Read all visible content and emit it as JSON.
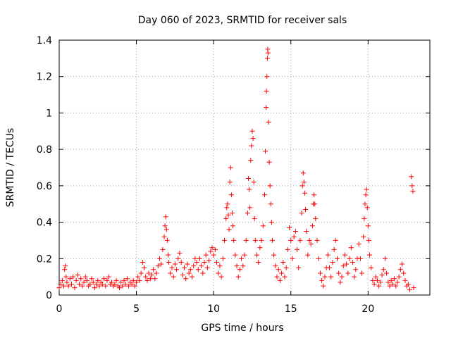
{
  "chart_data": {
    "type": "scatter",
    "title": "Day 060 of 2023, SRMTID for receiver sals",
    "xlabel": "GPS time / hours",
    "ylabel": "SRMTID / TECUs",
    "xlim": [
      0,
      24
    ],
    "ylim": [
      0,
      1.4
    ],
    "x_ticks": [
      0,
      5,
      10,
      15,
      20
    ],
    "x_tick_labels": [
      "0",
      "5",
      "10",
      "15",
      "20"
    ],
    "y_ticks": [
      0,
      0.2,
      0.4,
      0.6,
      0.8,
      1.0,
      1.2,
      1.4
    ],
    "y_tick_labels": [
      "0",
      "0.2",
      "0.4",
      "0.6",
      "0.8",
      "1",
      "1.2",
      "1.4"
    ],
    "grid": true,
    "marker": "+",
    "color": "#ff0000",
    "series": [
      {
        "name": "SRMTID",
        "points": [
          [
            0.0,
            0.04
          ],
          [
            0.1,
            0.06
          ],
          [
            0.2,
            0.08
          ],
          [
            0.3,
            0.05
          ],
          [
            0.35,
            0.14
          ],
          [
            0.4,
            0.16
          ],
          [
            0.45,
            0.1
          ],
          [
            0.5,
            0.07
          ],
          [
            0.6,
            0.05
          ],
          [
            0.7,
            0.09
          ],
          [
            0.8,
            0.06
          ],
          [
            0.9,
            0.1
          ],
          [
            1.0,
            0.04
          ],
          [
            1.1,
            0.08
          ],
          [
            1.2,
            0.11
          ],
          [
            1.3,
            0.06
          ],
          [
            1.4,
            0.09
          ],
          [
            1.5,
            0.05
          ],
          [
            1.6,
            0.07
          ],
          [
            1.7,
            0.1
          ],
          [
            1.8,
            0.08
          ],
          [
            1.9,
            0.05
          ],
          [
            2.0,
            0.06
          ],
          [
            2.1,
            0.09
          ],
          [
            2.2,
            0.07
          ],
          [
            2.3,
            0.04
          ],
          [
            2.4,
            0.06
          ],
          [
            2.5,
            0.08
          ],
          [
            2.6,
            0.05
          ],
          [
            2.7,
            0.07
          ],
          [
            2.8,
            0.06
          ],
          [
            2.9,
            0.09
          ],
          [
            3.0,
            0.05
          ],
          [
            3.1,
            0.08
          ],
          [
            3.2,
            0.1
          ],
          [
            3.3,
            0.06
          ],
          [
            3.4,
            0.07
          ],
          [
            3.5,
            0.05
          ],
          [
            3.6,
            0.06
          ],
          [
            3.7,
            0.08
          ],
          [
            3.8,
            0.05
          ],
          [
            3.9,
            0.04
          ],
          [
            4.0,
            0.07
          ],
          [
            4.1,
            0.05
          ],
          [
            4.2,
            0.08
          ],
          [
            4.3,
            0.06
          ],
          [
            4.4,
            0.09
          ],
          [
            4.5,
            0.05
          ],
          [
            4.6,
            0.07
          ],
          [
            4.7,
            0.06
          ],
          [
            4.8,
            0.08
          ],
          [
            4.9,
            0.05
          ],
          [
            5.0,
            0.07
          ],
          [
            5.1,
            0.1
          ],
          [
            5.2,
            0.08
          ],
          [
            5.3,
            0.12
          ],
          [
            5.4,
            0.18
          ],
          [
            5.5,
            0.15
          ],
          [
            5.6,
            0.1
          ],
          [
            5.7,
            0.08
          ],
          [
            5.8,
            0.12
          ],
          [
            5.9,
            0.09
          ],
          [
            6.0,
            0.11
          ],
          [
            6.1,
            0.14
          ],
          [
            6.2,
            0.09
          ],
          [
            6.3,
            0.12
          ],
          [
            6.4,
            0.16
          ],
          [
            6.5,
            0.2
          ],
          [
            6.6,
            0.17
          ],
          [
            6.7,
            0.25
          ],
          [
            6.8,
            0.32
          ],
          [
            6.85,
            0.38
          ],
          [
            6.9,
            0.43
          ],
          [
            6.95,
            0.36
          ],
          [
            7.0,
            0.3
          ],
          [
            7.05,
            0.22
          ],
          [
            7.1,
            0.18
          ],
          [
            7.2,
            0.12
          ],
          [
            7.3,
            0.15
          ],
          [
            7.4,
            0.1
          ],
          [
            7.5,
            0.17
          ],
          [
            7.6,
            0.14
          ],
          [
            7.7,
            0.2
          ],
          [
            7.8,
            0.23
          ],
          [
            7.9,
            0.18
          ],
          [
            8.0,
            0.11
          ],
          [
            8.1,
            0.15
          ],
          [
            8.2,
            0.09
          ],
          [
            8.3,
            0.17
          ],
          [
            8.4,
            0.12
          ],
          [
            8.5,
            0.14
          ],
          [
            8.6,
            0.1
          ],
          [
            8.7,
            0.16
          ],
          [
            8.8,
            0.2
          ],
          [
            8.9,
            0.18
          ],
          [
            9.0,
            0.14
          ],
          [
            9.1,
            0.2
          ],
          [
            9.2,
            0.16
          ],
          [
            9.3,
            0.12
          ],
          [
            9.4,
            0.18
          ],
          [
            9.5,
            0.22
          ],
          [
            9.6,
            0.15
          ],
          [
            9.7,
            0.19
          ],
          [
            9.8,
            0.24
          ],
          [
            9.9,
            0.26
          ],
          [
            10.0,
            0.22
          ],
          [
            10.1,
            0.25
          ],
          [
            10.2,
            0.18
          ],
          [
            10.3,
            0.12
          ],
          [
            10.4,
            0.16
          ],
          [
            10.5,
            0.1
          ],
          [
            10.6,
            0.2
          ],
          [
            10.7,
            0.3
          ],
          [
            10.8,
            0.42
          ],
          [
            10.85,
            0.48
          ],
          [
            10.9,
            0.5
          ],
          [
            10.95,
            0.44
          ],
          [
            11.0,
            0.36
          ],
          [
            11.05,
            0.62
          ],
          [
            11.1,
            0.7
          ],
          [
            11.15,
            0.55
          ],
          [
            11.2,
            0.45
          ],
          [
            11.25,
            0.38
          ],
          [
            11.3,
            0.3
          ],
          [
            11.4,
            0.22
          ],
          [
            11.5,
            0.16
          ],
          [
            11.6,
            0.1
          ],
          [
            11.7,
            0.14
          ],
          [
            11.8,
            0.2
          ],
          [
            11.9,
            0.16
          ],
          [
            12.0,
            0.22
          ],
          [
            12.1,
            0.3
          ],
          [
            12.2,
            0.45
          ],
          [
            12.25,
            0.64
          ],
          [
            12.3,
            0.58
          ],
          [
            12.35,
            0.48
          ],
          [
            12.4,
            0.74
          ],
          [
            12.45,
            0.82
          ],
          [
            12.5,
            0.9
          ],
          [
            12.55,
            0.86
          ],
          [
            12.6,
            0.62
          ],
          [
            12.65,
            0.42
          ],
          [
            12.7,
            0.3
          ],
          [
            12.8,
            0.22
          ],
          [
            12.9,
            0.18
          ],
          [
            13.0,
            0.26
          ],
          [
            13.1,
            0.3
          ],
          [
            13.2,
            0.38
          ],
          [
            13.3,
            0.55
          ],
          [
            13.35,
            0.79
          ],
          [
            13.4,
            1.03
          ],
          [
            13.42,
            1.12
          ],
          [
            13.45,
            1.2
          ],
          [
            13.48,
            1.3
          ],
          [
            13.5,
            1.35
          ],
          [
            13.52,
            1.33
          ],
          [
            13.55,
            0.95
          ],
          [
            13.6,
            0.73
          ],
          [
            13.65,
            0.6
          ],
          [
            13.7,
            0.5
          ],
          [
            13.75,
            0.4
          ],
          [
            13.8,
            0.3
          ],
          [
            13.9,
            0.22
          ],
          [
            14.0,
            0.16
          ],
          [
            14.1,
            0.1
          ],
          [
            14.2,
            0.14
          ],
          [
            14.3,
            0.08
          ],
          [
            14.4,
            0.12
          ],
          [
            14.5,
            0.18
          ],
          [
            14.6,
            0.1
          ],
          [
            14.7,
            0.15
          ],
          [
            14.8,
            0.25
          ],
          [
            14.9,
            0.37
          ],
          [
            15.0,
            0.3
          ],
          [
            15.1,
            0.2
          ],
          [
            15.2,
            0.32
          ],
          [
            15.3,
            0.35
          ],
          [
            15.4,
            0.25
          ],
          [
            15.5,
            0.15
          ],
          [
            15.6,
            0.3
          ],
          [
            15.7,
            0.45
          ],
          [
            15.75,
            0.6
          ],
          [
            15.8,
            0.67
          ],
          [
            15.85,
            0.62
          ],
          [
            15.9,
            0.56
          ],
          [
            15.95,
            0.47
          ],
          [
            16.0,
            0.35
          ],
          [
            16.1,
            0.22
          ],
          [
            16.2,
            0.3
          ],
          [
            16.3,
            0.28
          ],
          [
            16.4,
            0.38
          ],
          [
            16.45,
            0.5
          ],
          [
            16.5,
            0.55
          ],
          [
            16.55,
            0.5
          ],
          [
            16.6,
            0.42
          ],
          [
            16.7,
            0.3
          ],
          [
            16.8,
            0.2
          ],
          [
            16.9,
            0.12
          ],
          [
            17.0,
            0.08
          ],
          [
            17.1,
            0.05
          ],
          [
            17.2,
            0.1
          ],
          [
            17.3,
            0.15
          ],
          [
            17.4,
            0.22
          ],
          [
            17.5,
            0.15
          ],
          [
            17.6,
            0.1
          ],
          [
            17.7,
            0.18
          ],
          [
            17.8,
            0.25
          ],
          [
            17.9,
            0.3
          ],
          [
            18.0,
            0.2
          ],
          [
            18.1,
            0.12
          ],
          [
            18.2,
            0.07
          ],
          [
            18.3,
            0.1
          ],
          [
            18.4,
            0.16
          ],
          [
            18.5,
            0.22
          ],
          [
            18.6,
            0.17
          ],
          [
            18.7,
            0.12
          ],
          [
            18.8,
            0.2
          ],
          [
            18.9,
            0.26
          ],
          [
            19.0,
            0.18
          ],
          [
            19.1,
            0.1
          ],
          [
            19.2,
            0.14
          ],
          [
            19.3,
            0.2
          ],
          [
            19.4,
            0.28
          ],
          [
            19.5,
            0.2
          ],
          [
            19.6,
            0.12
          ],
          [
            19.7,
            0.32
          ],
          [
            19.75,
            0.42
          ],
          [
            19.8,
            0.5
          ],
          [
            19.85,
            0.55
          ],
          [
            19.9,
            0.58
          ],
          [
            19.95,
            0.48
          ],
          [
            20.0,
            0.38
          ],
          [
            20.05,
            0.3
          ],
          [
            20.1,
            0.22
          ],
          [
            20.2,
            0.15
          ],
          [
            20.3,
            0.08
          ],
          [
            20.4,
            0.06
          ],
          [
            20.5,
            0.1
          ],
          [
            20.6,
            0.08
          ],
          [
            20.7,
            0.05
          ],
          [
            20.8,
            0.07
          ],
          [
            20.9,
            0.11
          ],
          [
            21.0,
            0.14
          ],
          [
            21.1,
            0.2
          ],
          [
            21.2,
            0.12
          ],
          [
            21.3,
            0.07
          ],
          [
            21.4,
            0.05
          ],
          [
            21.5,
            0.08
          ],
          [
            21.6,
            0.06
          ],
          [
            21.7,
            0.09
          ],
          [
            21.8,
            0.05
          ],
          [
            21.9,
            0.07
          ],
          [
            22.0,
            0.1
          ],
          [
            22.1,
            0.14
          ],
          [
            22.2,
            0.17
          ],
          [
            22.3,
            0.12
          ],
          [
            22.4,
            0.08
          ],
          [
            22.5,
            0.05
          ],
          [
            22.6,
            0.06
          ],
          [
            22.7,
            0.03
          ],
          [
            22.8,
            0.65
          ],
          [
            22.85,
            0.6
          ],
          [
            22.9,
            0.57
          ],
          [
            22.95,
            0.04
          ]
        ]
      }
    ]
  }
}
